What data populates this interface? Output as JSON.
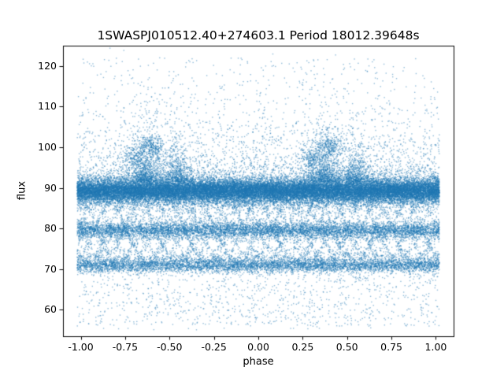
{
  "chart_data": {
    "type": "scatter",
    "title": "1SWASPJ010512.40+274603.1 Period 18012.39648s",
    "xlabel": "phase",
    "ylabel": "flux",
    "xlim": [
      -1.1,
      1.1
    ],
    "ylim": [
      53.5,
      125.0
    ],
    "x_ticks": [
      -1.0,
      -0.75,
      -0.5,
      -0.25,
      0.0,
      0.25,
      0.5,
      0.75,
      1.0
    ],
    "x_tick_labels": [
      "-1.00",
      "-0.75",
      "-0.50",
      "-0.25",
      "0.00",
      "0.25",
      "0.50",
      "0.75",
      "1.00"
    ],
    "y_ticks": [
      60,
      70,
      80,
      90,
      100,
      110,
      120
    ],
    "y_tick_labels": [
      "60",
      "70",
      "80",
      "90",
      "100",
      "110",
      "120"
    ],
    "marker_color": "#1f77b4",
    "marker_alpha": 0.5,
    "marker_size": 1.4,
    "seed": 42,
    "x_range": [
      -1.02,
      1.02
    ],
    "grid": false,
    "legend": "none",
    "description": "Phase-folded SuperWASP light curve; dense flux bands near 89, 80 and 71 with criss-cross streaks between them, plumes of brighter points near phases -0.63/0.37 and -0.45/0.55, sparse noise 55-122.",
    "components": [
      {
        "type": "band",
        "count": 24000,
        "mean": 89.4,
        "sd": 1.4
      },
      {
        "type": "band",
        "count": 6000,
        "mean": 88.6,
        "sd": 2.4
      },
      {
        "type": "band",
        "count": 6500,
        "mean": 79.6,
        "sd": 1.1
      },
      {
        "type": "band",
        "count": 5200,
        "mean": 70.9,
        "sd": 0.9
      },
      {
        "type": "wave",
        "count": 800,
        "center": 80.5,
        "amp": 8.3,
        "freq": 2,
        "phase": 0.0,
        "jitter": 0.8
      },
      {
        "type": "wave",
        "count": 800,
        "center": 80.5,
        "amp": 8.3,
        "freq": 2,
        "phase": 0.17,
        "jitter": 0.8
      },
      {
        "type": "wave",
        "count": 800,
        "center": 80.5,
        "amp": 8.3,
        "freq": 2,
        "phase": 0.33,
        "jitter": 0.8
      },
      {
        "type": "wave",
        "count": 800,
        "center": 80.5,
        "amp": 8.3,
        "freq": 2,
        "phase": 0.5,
        "jitter": 0.8
      },
      {
        "type": "wave",
        "count": 800,
        "center": 80.5,
        "amp": 8.3,
        "freq": 2,
        "phase": 0.67,
        "jitter": 0.8
      },
      {
        "type": "wave",
        "count": 800,
        "center": 80.5,
        "amp": 8.3,
        "freq": 2,
        "phase": 0.83,
        "jitter": 0.8
      },
      {
        "type": "wave",
        "count": 700,
        "center": 75.5,
        "amp": 4.5,
        "freq": 3,
        "phase": 0.1,
        "jitter": 0.7
      },
      {
        "type": "wave",
        "count": 700,
        "center": 75.5,
        "amp": 4.5,
        "freq": 3,
        "phase": 0.6,
        "jitter": 0.7
      },
      {
        "type": "plume",
        "count": 800,
        "x_center": -0.63,
        "x_sd": 0.05,
        "y_base": 91.5,
        "y_scale": 4.0
      },
      {
        "type": "plume",
        "count": 800,
        "x_center": 0.37,
        "x_sd": 0.05,
        "y_base": 91.5,
        "y_scale": 4.0
      },
      {
        "type": "plume",
        "count": 500,
        "x_center": -0.45,
        "x_sd": 0.04,
        "y_base": 91.5,
        "y_scale": 3.2
      },
      {
        "type": "plume",
        "count": 500,
        "x_center": 0.55,
        "x_sd": 0.04,
        "y_base": 91.5,
        "y_scale": 3.2
      },
      {
        "type": "cluster",
        "count": 240,
        "x_center": -0.6,
        "x_sd": 0.035,
        "y_center": 100.3,
        "y_sd": 1.4
      },
      {
        "type": "cluster",
        "count": 240,
        "x_center": 0.4,
        "x_sd": 0.035,
        "y_center": 100.3,
        "y_sd": 1.4
      },
      {
        "type": "cluster",
        "count": 160,
        "x_center": -0.7,
        "x_sd": 0.03,
        "y_center": 97.5,
        "y_sd": 1.3
      },
      {
        "type": "cluster",
        "count": 160,
        "x_center": 0.3,
        "x_sd": 0.03,
        "y_center": 97.5,
        "y_sd": 1.3
      },
      {
        "type": "expnoise",
        "count": 2200,
        "y_base": 92.0,
        "y_scale": 6.0
      },
      {
        "type": "uniform",
        "count": 1500,
        "y": [
          55,
          122
        ]
      },
      {
        "type": "uniform",
        "count": 700,
        "y": [
          56,
          70
        ]
      }
    ]
  }
}
